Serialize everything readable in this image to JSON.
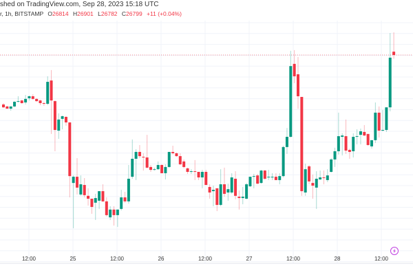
{
  "header": {
    "published": "shed on TradingView.com, Sep 28, 2023 15:18 UTC",
    "symbol": "r, 1h, BITSTAMP",
    "o_label": "O",
    "o": "26814",
    "h_label": "H",
    "h": "26901",
    "l_label": "L",
    "l": "26782",
    "c_label": "C",
    "c": "26799",
    "change": "+11 (+0.04%)"
  },
  "colors": {
    "up": "#089981",
    "down": "#f23645",
    "price_line": "#f23645",
    "grid": "#f0f3fa",
    "event_icon": "#c040e0"
  },
  "event_icon": "lightning-icon",
  "chart_data": {
    "type": "candlestick",
    "interval": "1h",
    "grid": true,
    "x_ticks": [
      "12:00",
      "25",
      "12:00",
      "26",
      "12:00",
      "27",
      "12:00",
      "28",
      "12:00"
    ],
    "last_price": 26799,
    "candles": [
      [
        26576,
        26582,
        26560,
        26563
      ],
      [
        26567,
        26570,
        26557,
        26557
      ],
      [
        26557,
        26567,
        26548,
        26567
      ],
      [
        26567,
        26591,
        26563,
        26588
      ],
      [
        26588,
        26613,
        26585,
        26591
      ],
      [
        26594,
        26597,
        26579,
        26582
      ],
      [
        26585,
        26619,
        26576,
        26601
      ],
      [
        26604,
        26616,
        26594,
        26613
      ],
      [
        26613,
        26622,
        26597,
        26601
      ],
      [
        26601,
        26604,
        26588,
        26591
      ],
      [
        26594,
        26597,
        26573,
        26582
      ],
      [
        26582,
        26588,
        26570,
        26579
      ],
      [
        26579,
        26703,
        26573,
        26678
      ],
      [
        26684,
        26731,
        26443,
        26594
      ],
      [
        26591,
        26594,
        26365,
        26461
      ],
      [
        26458,
        26536,
        26421,
        26508
      ],
      [
        26511,
        26526,
        26464,
        26523
      ],
      [
        26520,
        26523,
        26480,
        26495
      ],
      [
        26495,
        26495,
        26157,
        26253
      ],
      [
        26222,
        26256,
        26018,
        26250
      ],
      [
        26250,
        26334,
        26170,
        26201
      ],
      [
        26170,
        26256,
        26164,
        26216
      ],
      [
        26213,
        26244,
        26157,
        26167
      ],
      [
        26164,
        26198,
        26120,
        26151
      ],
      [
        26151,
        26151,
        26083,
        26114
      ],
      [
        26133,
        26173,
        26055,
        26154
      ],
      [
        26142,
        26185,
        26105,
        26185
      ],
      [
        26185,
        26216,
        26136,
        26139
      ],
      [
        26139,
        26157,
        26071,
        26077
      ],
      [
        26067,
        26117,
        26055,
        26102
      ],
      [
        26102,
        26117,
        26030,
        26077
      ],
      [
        26077,
        26102,
        26024,
        26102
      ],
      [
        26105,
        26191,
        26098,
        26157
      ],
      [
        26157,
        26182,
        26133,
        26139
      ],
      [
        26139,
        26303,
        26129,
        26241
      ],
      [
        26250,
        26418,
        26241,
        26331
      ],
      [
        26331,
        26374,
        26235,
        26362
      ],
      [
        26362,
        26393,
        26334,
        26343
      ],
      [
        26340,
        26356,
        26278,
        26337
      ],
      [
        26337,
        26439,
        26288,
        26291
      ],
      [
        26294,
        26303,
        26272,
        26281
      ],
      [
        26284,
        26291,
        26278,
        26284
      ],
      [
        26284,
        26319,
        26281,
        26303
      ],
      [
        26303,
        26306,
        26266,
        26266
      ],
      [
        26266,
        26306,
        26238,
        26294
      ],
      [
        26294,
        26362,
        26291,
        26362
      ],
      [
        26362,
        26390,
        26350,
        26356
      ],
      [
        26356,
        26359,
        26340,
        26343
      ],
      [
        26343,
        26356,
        26303,
        26306
      ],
      [
        26319,
        26328,
        26288,
        26294
      ],
      [
        26288,
        26291,
        26263,
        26272
      ],
      [
        26272,
        26284,
        26263,
        26275
      ],
      [
        26275,
        26325,
        26235,
        26272
      ],
      [
        26272,
        26272,
        26235,
        26247
      ],
      [
        26247,
        26281,
        26198,
        26272
      ],
      [
        26272,
        26281,
        26213,
        26213
      ],
      [
        26204,
        26216,
        26151,
        26179
      ],
      [
        26185,
        26210,
        26117,
        26191
      ],
      [
        26198,
        26198,
        26095,
        26123
      ],
      [
        26123,
        26284,
        26117,
        26216
      ],
      [
        26216,
        26291,
        26160,
        26173
      ],
      [
        26179,
        26219,
        26142,
        26194
      ],
      [
        26179,
        26266,
        26173,
        26247
      ],
      [
        26241,
        26275,
        26148,
        26164
      ],
      [
        26160,
        26188,
        26102,
        26154
      ],
      [
        26154,
        26204,
        26126,
        26160
      ],
      [
        26151,
        26222,
        26148,
        26216
      ],
      [
        26207,
        26250,
        26204,
        26250
      ],
      [
        26250,
        26263,
        26198,
        26253
      ],
      [
        26256,
        26263,
        26216,
        26219
      ],
      [
        26222,
        26281,
        26219,
        26278
      ],
      [
        26278,
        26281,
        26235,
        26241
      ],
      [
        26247,
        26281,
        26235,
        26250
      ],
      [
        26247,
        26266,
        26235,
        26250
      ],
      [
        26250,
        26266,
        26235,
        26235
      ],
      [
        26235,
        26266,
        26216,
        26253
      ],
      [
        26253,
        26390,
        26247,
        26384
      ],
      [
        26384,
        26470,
        26353,
        26430
      ],
      [
        26430,
        26818,
        26427,
        26749
      ],
      [
        26759,
        26821,
        26672,
        26703
      ],
      [
        26712,
        26790,
        26557,
        26613
      ],
      [
        26610,
        26610,
        26164,
        26185
      ],
      [
        26179,
        26309,
        26164,
        26284
      ],
      [
        26297,
        26303,
        26216,
        26229
      ],
      [
        26222,
        26260,
        26151,
        26210
      ],
      [
        26201,
        26275,
        26105,
        26241
      ],
      [
        26238,
        26278,
        26235,
        26247
      ],
      [
        26247,
        26278,
        26216,
        26244
      ],
      [
        26235,
        26284,
        26226,
        26256
      ],
      [
        26272,
        26334,
        26269,
        26328
      ],
      [
        26328,
        26381,
        26294,
        26365
      ],
      [
        26365,
        26539,
        26350,
        26433
      ],
      [
        26430,
        26446,
        26346,
        26436
      ],
      [
        26433,
        26508,
        26353,
        26368
      ],
      [
        26371,
        26377,
        26331,
        26362
      ],
      [
        26365,
        26446,
        26337,
        26430
      ],
      [
        26430,
        26464,
        26396,
        26433
      ],
      [
        26439,
        26467,
        26396,
        26455
      ],
      [
        26452,
        26483,
        26433,
        26436
      ],
      [
        26443,
        26443,
        26390,
        26393
      ],
      [
        26387,
        26408,
        26377,
        26415
      ],
      [
        26415,
        26585,
        26402,
        26539
      ],
      [
        26539,
        26567,
        26427,
        26458
      ],
      [
        26458,
        26551,
        26455,
        26461
      ],
      [
        26461,
        26563,
        26452,
        26563
      ],
      [
        26563,
        26898,
        26545,
        26787
      ],
      [
        26814,
        26901,
        26782,
        26799
      ]
    ]
  }
}
